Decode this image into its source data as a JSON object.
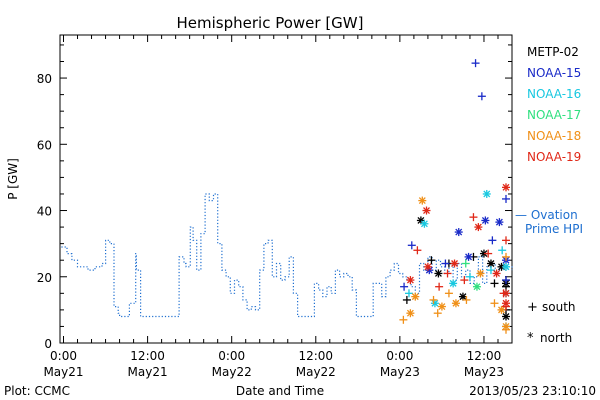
{
  "footer": {
    "left": "Plot: CCMC",
    "center": "Date and Time",
    "right": "2013/05/23 23:10:10"
  },
  "chart_data": {
    "type": "scatter",
    "title": "Hemispheric Power [GW]",
    "xlabel": "Date and Time",
    "ylabel": "P [GW]",
    "x_unit": "hours since 2013-05-21 00:00",
    "xlim": [
      -0.5,
      64
    ],
    "ylim": [
      0,
      93
    ],
    "grid": false,
    "legend_placement": "right",
    "x_ticks": [
      {
        "x": 0,
        "time": "0:00",
        "date": "May21"
      },
      {
        "x": 12,
        "time": "12:00",
        "date": "May21"
      },
      {
        "x": 24,
        "time": "0:00",
        "date": "May22"
      },
      {
        "x": 36,
        "time": "12:00",
        "date": "May22"
      },
      {
        "x": 48,
        "time": "0:00",
        "date": "May23"
      },
      {
        "x": 60,
        "time": "12:00",
        "date": "May23"
      }
    ],
    "y_ticks": [
      0,
      20,
      40,
      60,
      80
    ],
    "legend": {
      "satellites": [
        {
          "name": "METP-02",
          "color": "#000000"
        },
        {
          "name": "NOAA-15",
          "color": "#1a2bc8"
        },
        {
          "name": "NOAA-16",
          "color": "#18c8e0"
        },
        {
          "name": "NOAA-17",
          "color": "#30e080"
        },
        {
          "name": "NOAA-18",
          "color": "#f09018"
        },
        {
          "name": "NOAA-19",
          "color": "#e02818"
        }
      ],
      "model_line1": "— Ovation",
      "model_line2": "Prime HPI",
      "model_color": "#1e6fd0",
      "south_symbol": "+",
      "south_label": "south",
      "north_symbol": "*",
      "north_label": "north"
    },
    "ovation_series": {
      "name": "Ovation Prime HPI",
      "x": [
        -0.3,
        0.5,
        1.2,
        2.0,
        3.5,
        4.5,
        5.5,
        6.0,
        6.6,
        7.2,
        7.8,
        8.0,
        8.8,
        9.4,
        10.3,
        10.4,
        11.0,
        11.2,
        12.3,
        12.5,
        13.5,
        14.5,
        15.5,
        16.3,
        16.5,
        17.2,
        17.5,
        18.1,
        18.5,
        19.0,
        19.6,
        20.2,
        20.8,
        21.4,
        22.0,
        22.6,
        23.2,
        23.8,
        24.4,
        25.0,
        25.6,
        26.2,
        26.8,
        27.4,
        28.0,
        28.6,
        29.2,
        29.8,
        30.4,
        31.0,
        31.6,
        32.2,
        32.8,
        33.4,
        34.0,
        34.6,
        35.2,
        35.8,
        36.4,
        37.0,
        37.6,
        38.2,
        38.8,
        39.4,
        40.0,
        40.6,
        41.2,
        41.8,
        42.4,
        43.0,
        43.6,
        44.2,
        44.8,
        45.4,
        46.0,
        46.6,
        47.2,
        47.8,
        48.4,
        49.0,
        49.6,
        50.2,
        50.8,
        51.4,
        52.0,
        52.6,
        53.2,
        53.8,
        54.4,
        55.0,
        55.6,
        56.2,
        56.8,
        57.4,
        58.0,
        58.6,
        59.2,
        59.8,
        60.4,
        61.0,
        61.6,
        62.2,
        62.8,
        63.4,
        64.0
      ],
      "y": [
        29,
        27,
        25,
        23,
        22,
        23,
        24,
        31,
        30,
        11,
        9,
        8,
        8,
        12,
        27,
        22,
        8,
        8,
        8,
        8,
        8,
        8,
        8,
        8,
        26,
        24,
        23,
        35,
        31,
        22,
        33,
        45,
        43,
        45,
        30,
        22,
        20,
        15,
        19,
        17,
        13,
        10,
        11,
        10,
        22,
        30,
        31,
        20,
        24,
        19,
        20,
        26,
        15,
        8,
        8,
        8,
        8,
        18,
        16,
        14,
        17,
        15,
        22,
        20,
        21,
        20,
        16,
        8,
        8,
        8,
        8,
        18,
        18,
        14,
        20,
        22,
        24,
        21,
        20,
        19,
        17,
        15,
        24,
        22,
        26,
        22,
        25,
        23,
        21,
        24,
        19,
        24,
        20,
        22,
        18,
        20,
        26,
        18,
        23,
        24,
        22,
        23,
        22,
        23,
        22
      ]
    },
    "satellite_points": [
      {
        "sat": "METP-02",
        "hemi": "south",
        "x": 49.0,
        "y": 13
      },
      {
        "sat": "METP-02",
        "hemi": "north",
        "x": 51.0,
        "y": 37
      },
      {
        "sat": "METP-02",
        "hemi": "south",
        "x": 52.5,
        "y": 25
      },
      {
        "sat": "METP-02",
        "hemi": "north",
        "x": 53.5,
        "y": 21
      },
      {
        "sat": "METP-02",
        "hemi": "south",
        "x": 55.0,
        "y": 24
      },
      {
        "sat": "METP-02",
        "hemi": "north",
        "x": 57.0,
        "y": 14
      },
      {
        "sat": "METP-02",
        "hemi": "south",
        "x": 58.5,
        "y": 26
      },
      {
        "sat": "METP-02",
        "hemi": "north",
        "x": 60.0,
        "y": 27
      },
      {
        "sat": "METP-02",
        "hemi": "south",
        "x": 61.5,
        "y": 18
      },
      {
        "sat": "METP-02",
        "hemi": "north",
        "x": 62.5,
        "y": 23
      },
      {
        "sat": "METP-02",
        "hemi": "south",
        "x": 63.5,
        "y": 10
      },
      {
        "sat": "METP-02",
        "hemi": "north",
        "x": 64.5,
        "y": 8
      },
      {
        "sat": "METP-02",
        "hemi": "south",
        "x": 65.5,
        "y": 17
      },
      {
        "sat": "METP-02",
        "hemi": "north",
        "x": 66.0,
        "y": 18
      },
      {
        "sat": "METP-02",
        "hemi": "south",
        "x": 66.5,
        "y": 19
      },
      {
        "sat": "METP-02",
        "hemi": "north",
        "x": 61.0,
        "y": 24
      },
      {
        "sat": "NOAA-15",
        "hemi": "south",
        "x": 58.8,
        "y": 84.5
      },
      {
        "sat": "NOAA-15",
        "hemi": "south",
        "x": 59.7,
        "y": 74.5
      },
      {
        "sat": "NOAA-15",
        "hemi": "north",
        "x": 56.4,
        "y": 33.5
      },
      {
        "sat": "NOAA-15",
        "hemi": "south",
        "x": 49.7,
        "y": 29.5
      },
      {
        "sat": "NOAA-15",
        "hemi": "north",
        "x": 60.2,
        "y": 37
      },
      {
        "sat": "NOAA-15",
        "hemi": "south",
        "x": 61.2,
        "y": 31
      },
      {
        "sat": "NOAA-15",
        "hemi": "north",
        "x": 62.2,
        "y": 36.5
      },
      {
        "sat": "NOAA-15",
        "hemi": "south",
        "x": 65.4,
        "y": 43.5
      },
      {
        "sat": "NOAA-15",
        "hemi": "north",
        "x": 66.2,
        "y": 25
      },
      {
        "sat": "NOAA-15",
        "hemi": "south",
        "x": 54.5,
        "y": 24
      },
      {
        "sat": "NOAA-15",
        "hemi": "north",
        "x": 57.8,
        "y": 26
      },
      {
        "sat": "NOAA-15",
        "hemi": "south",
        "x": 64.0,
        "y": 19
      },
      {
        "sat": "NOAA-15",
        "hemi": "north",
        "x": 52.2,
        "y": 22
      },
      {
        "sat": "NOAA-15",
        "hemi": "south",
        "x": 48.6,
        "y": 17
      },
      {
        "sat": "NOAA-16",
        "hemi": "north",
        "x": 60.4,
        "y": 45
      },
      {
        "sat": "NOAA-16",
        "hemi": "north",
        "x": 51.5,
        "y": 36
      },
      {
        "sat": "NOAA-16",
        "hemi": "south",
        "x": 58.0,
        "y": 20
      },
      {
        "sat": "NOAA-16",
        "hemi": "south",
        "x": 62.6,
        "y": 28
      },
      {
        "sat": "NOAA-16",
        "hemi": "north",
        "x": 63.4,
        "y": 15
      },
      {
        "sat": "NOAA-16",
        "hemi": "south",
        "x": 65.0,
        "y": 5
      },
      {
        "sat": "NOAA-16",
        "hemi": "north",
        "x": 67.0,
        "y": 23
      },
      {
        "sat": "NOAA-16",
        "hemi": "south",
        "x": 49.3,
        "y": 15
      },
      {
        "sat": "NOAA-16",
        "hemi": "north",
        "x": 55.6,
        "y": 18
      },
      {
        "sat": "NOAA-16",
        "hemi": "south",
        "x": 61.0,
        "y": 22
      },
      {
        "sat": "NOAA-16",
        "hemi": "north",
        "x": 53.0,
        "y": 12
      },
      {
        "sat": "NOAA-17",
        "hemi": "south",
        "x": 57.4,
        "y": 24
      },
      {
        "sat": "NOAA-17",
        "hemi": "north",
        "x": 59.0,
        "y": 17
      },
      {
        "sat": "NOAA-18",
        "hemi": "north",
        "x": 51.2,
        "y": 43
      },
      {
        "sat": "NOAA-18",
        "hemi": "south",
        "x": 48.5,
        "y": 7
      },
      {
        "sat": "NOAA-18",
        "hemi": "north",
        "x": 49.5,
        "y": 9
      },
      {
        "sat": "NOAA-18",
        "hemi": "south",
        "x": 52.8,
        "y": 13
      },
      {
        "sat": "NOAA-18",
        "hemi": "north",
        "x": 54.0,
        "y": 11
      },
      {
        "sat": "NOAA-18",
        "hemi": "south",
        "x": 55.0,
        "y": 15
      },
      {
        "sat": "NOAA-18",
        "hemi": "north",
        "x": 56.0,
        "y": 12
      },
      {
        "sat": "NOAA-18",
        "hemi": "south",
        "x": 57.5,
        "y": 13
      },
      {
        "sat": "NOAA-18",
        "hemi": "north",
        "x": 59.5,
        "y": 21
      },
      {
        "sat": "NOAA-18",
        "hemi": "south",
        "x": 61.5,
        "y": 12
      },
      {
        "sat": "NOAA-18",
        "hemi": "north",
        "x": 62.5,
        "y": 10
      },
      {
        "sat": "NOAA-18",
        "hemi": "south",
        "x": 63.5,
        "y": 4
      },
      {
        "sat": "NOAA-18",
        "hemi": "north",
        "x": 64.2,
        "y": 5
      },
      {
        "sat": "NOAA-18",
        "hemi": "south",
        "x": 65.6,
        "y": 26
      },
      {
        "sat": "NOAA-18",
        "hemi": "north",
        "x": 50.2,
        "y": 14
      },
      {
        "sat": "NOAA-18",
        "hemi": "south",
        "x": 53.4,
        "y": 9
      },
      {
        "sat": "NOAA-19",
        "hemi": "north",
        "x": 66.3,
        "y": 47
      },
      {
        "sat": "NOAA-19",
        "hemi": "south",
        "x": 58.5,
        "y": 38
      },
      {
        "sat": "NOAA-19",
        "hemi": "north",
        "x": 51.8,
        "y": 40
      },
      {
        "sat": "NOAA-19",
        "hemi": "south",
        "x": 50.5,
        "y": 28
      },
      {
        "sat": "NOAA-19",
        "hemi": "north",
        "x": 52.0,
        "y": 23
      },
      {
        "sat": "NOAA-19",
        "hemi": "south",
        "x": 54.8,
        "y": 21
      },
      {
        "sat": "NOAA-19",
        "hemi": "north",
        "x": 55.8,
        "y": 24
      },
      {
        "sat": "NOAA-19",
        "hemi": "south",
        "x": 57.2,
        "y": 19
      },
      {
        "sat": "NOAA-19",
        "hemi": "north",
        "x": 59.2,
        "y": 35
      },
      {
        "sat": "NOAA-19",
        "hemi": "south",
        "x": 60.6,
        "y": 27
      },
      {
        "sat": "NOAA-19",
        "hemi": "north",
        "x": 61.8,
        "y": 21
      },
      {
        "sat": "NOAA-19",
        "hemi": "south",
        "x": 62.8,
        "y": 15
      },
      {
        "sat": "NOAA-19",
        "hemi": "north",
        "x": 64.0,
        "y": 12
      },
      {
        "sat": "NOAA-19",
        "hemi": "south",
        "x": 65.8,
        "y": 31
      },
      {
        "sat": "NOAA-19",
        "hemi": "north",
        "x": 66.8,
        "y": 15
      },
      {
        "sat": "NOAA-19",
        "hemi": "south",
        "x": 67.3,
        "y": 11
      },
      {
        "sat": "NOAA-19",
        "hemi": "north",
        "x": 49.5,
        "y": 19
      },
      {
        "sat": "NOAA-19",
        "hemi": "south",
        "x": 53.6,
        "y": 17
      }
    ]
  }
}
